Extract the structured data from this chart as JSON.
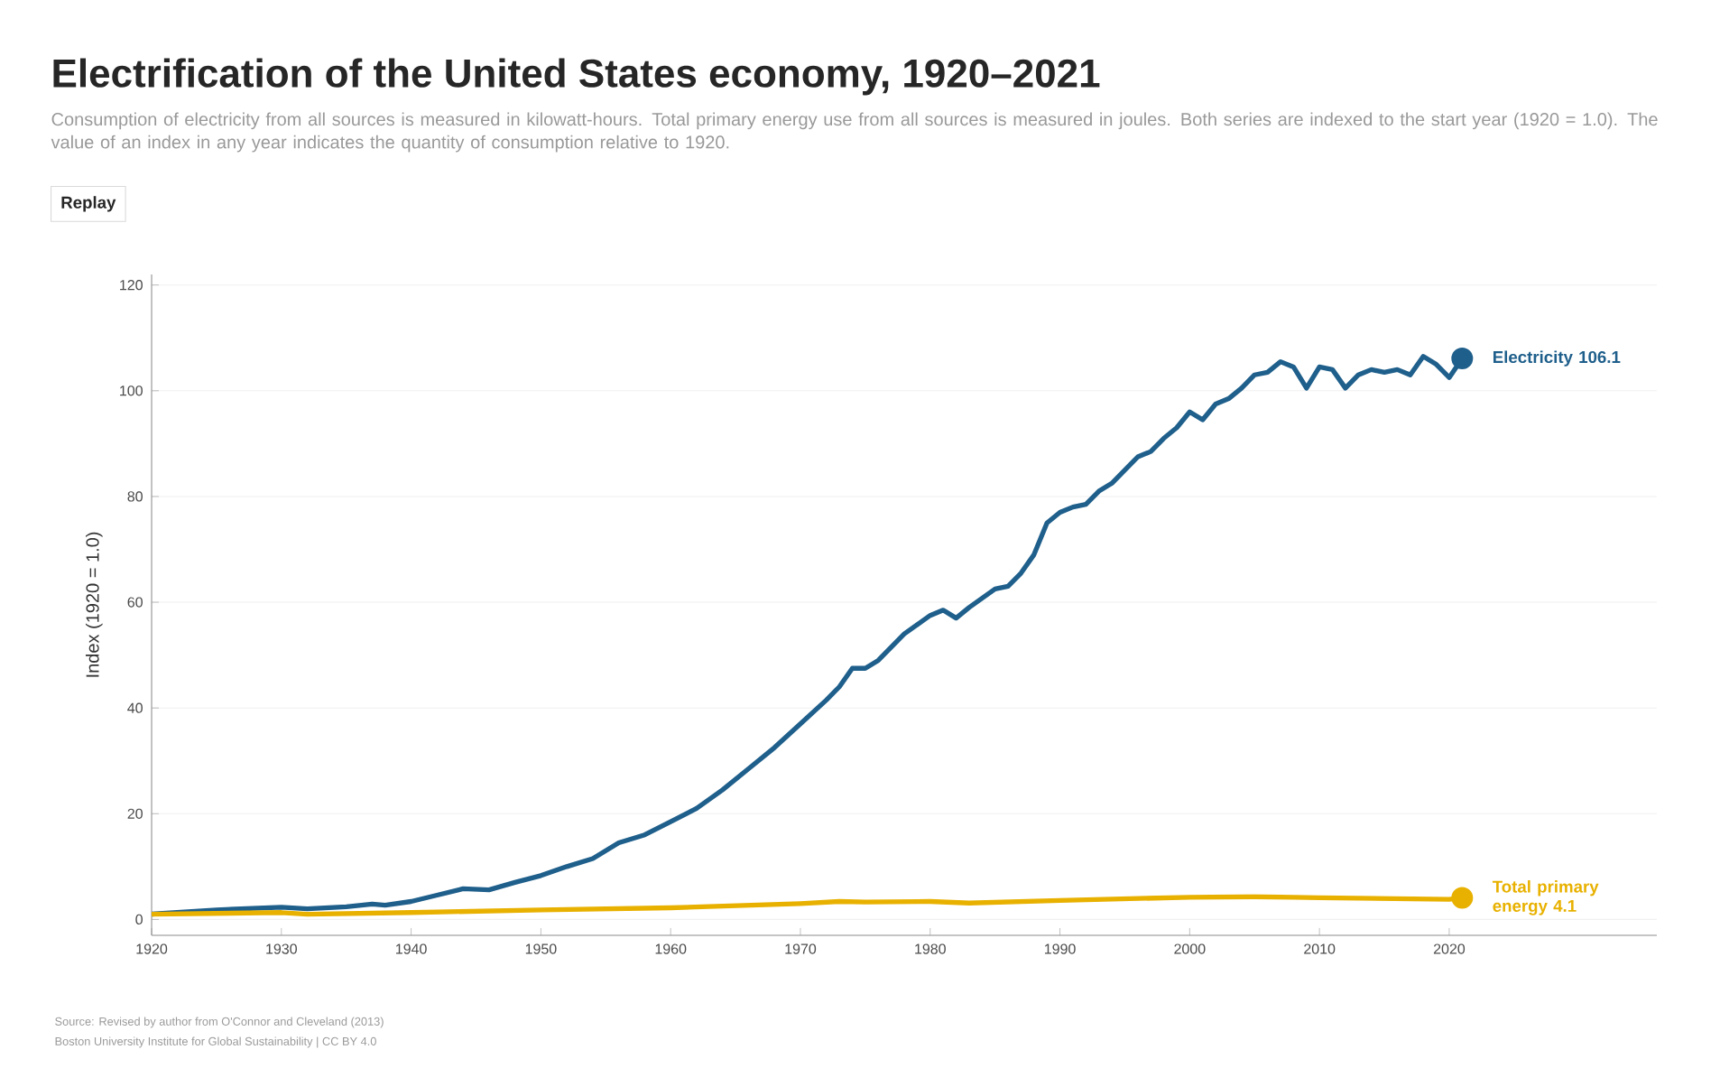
{
  "chart_data": {
    "type": "line",
    "title": "Electrification of the United States economy, 1920–2021",
    "subtitle": "Consumption of electricity from all sources is measured in kilowatt-hours. Total primary energy use from all sources is measured in joules. Both series are indexed to the start year (1920 = 1.0). The value of an index in any year indicates the quantity of consumption relative to 1920.",
    "ylabel": "Index (1920 = 1.0)",
    "annotations": [
      "Replay",
      "Source: Revised by author from O'Connor and Cleveland (2013)",
      "Boston University Institute for Global Sustainability | CC BY 4.0"
    ],
    "xlim": [
      1920,
      2036
    ],
    "ylim": [
      -3,
      122
    ],
    "xticks": [
      1920,
      1930,
      1940,
      1950,
      1960,
      1970,
      1980,
      1990,
      2000,
      2010,
      2020
    ],
    "yticks": [
      0,
      20,
      40,
      60,
      80,
      100,
      120
    ],
    "grid": "y",
    "line_style": "solid",
    "series": [
      {
        "name": "Electricity 106.1",
        "color": "#1f5f8b",
        "x": [
          1920,
          1925,
          1930,
          1932,
          1935,
          1937,
          1938,
          1940,
          1942,
          1944,
          1946,
          1948,
          1950,
          1952,
          1954,
          1956,
          1958,
          1960,
          1962,
          1964,
          1966,
          1968,
          1970,
          1972,
          1973,
          1974,
          1975,
          1976,
          1978,
          1980,
          1981,
          1982,
          1983,
          1985,
          1986,
          1987,
          1988,
          1989,
          1990,
          1991,
          1992,
          1993,
          1994,
          1995,
          1996,
          1997,
          1998,
          1999,
          2000,
          2001,
          2002,
          2003,
          2004,
          2005,
          2006,
          2007,
          2008,
          2009,
          2010,
          2011,
          2012,
          2013,
          2014,
          2015,
          2016,
          2017,
          2018,
          2019,
          2020,
          2021
        ],
        "values": [
          1,
          1.8,
          2.3,
          2,
          2.4,
          2.9,
          2.7,
          3.4,
          4.6,
          5.8,
          5.6,
          7,
          8.3,
          10,
          11.5,
          14.5,
          16,
          18.5,
          21,
          24.5,
          28.5,
          32.5,
          37,
          41.5,
          44,
          47.5,
          47.5,
          49,
          54,
          57.5,
          58.5,
          57,
          59,
          62.5,
          63,
          65.5,
          69,
          75,
          77,
          78,
          78.5,
          81,
          82.5,
          85,
          87.5,
          88.5,
          91,
          93,
          96,
          94.5,
          97.5,
          98.5,
          100.5,
          103,
          103.5,
          105.5,
          104.5,
          100.5,
          104.5,
          104,
          100.5,
          103,
          104,
          103.5,
          104,
          103,
          106.5,
          105,
          102.5,
          106.1
        ]
      },
      {
        "name": "Total primary energy 4.1",
        "color": "#e8b100",
        "x": [
          1920,
          1930,
          1932,
          1940,
          1950,
          1960,
          1970,
          1973,
          1975,
          1980,
          1983,
          1990,
          2000,
          2005,
          2008,
          2010,
          2020,
          2021
        ],
        "values": [
          1,
          1.3,
          1,
          1.3,
          1.8,
          2.2,
          3,
          3.4,
          3.3,
          3.4,
          3.1,
          3.6,
          4.2,
          4.3,
          4.2,
          4.1,
          3.8,
          4.1
        ]
      }
    ]
  }
}
